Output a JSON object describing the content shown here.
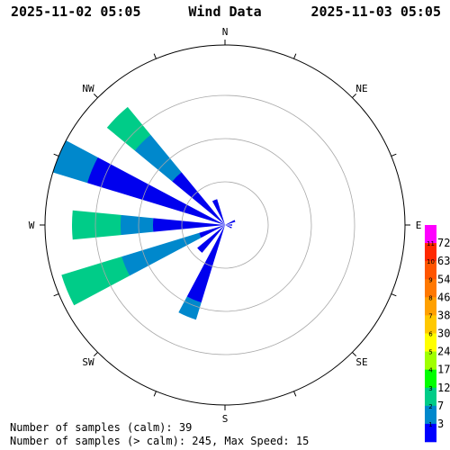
{
  "header": {
    "start": "2025-11-02 05:05",
    "title": "Wind Data",
    "end": "2025-11-03 05:05"
  },
  "footer": {
    "calm_label": "Number of samples (calm): 39",
    "stats_label": "Number of samples (> calm): 245,  Max Speed: 15"
  },
  "chart_data": {
    "type": "wind-rose",
    "title": "Wind Data",
    "directions": [
      "N",
      "NE",
      "E",
      "SE",
      "S",
      "SW",
      "W",
      "NW"
    ],
    "compass_step_deg": 22.5,
    "rings": 4,
    "sector_width_deg": 11,
    "sectors": [
      {
        "bearing": 67.5,
        "bands": [
          0.06
        ]
      },
      {
        "bearing": 90,
        "bands": [
          0.04
        ]
      },
      {
        "bearing": 112.5,
        "bands": [
          0.04
        ]
      },
      {
        "bearing": 202.5,
        "bands": [
          0.45,
          0.55
        ]
      },
      {
        "bearing": 225,
        "bands": [
          0.2
        ]
      },
      {
        "bearing": 247.5,
        "bands": [
          0.15,
          0.6,
          0.95
        ]
      },
      {
        "bearing": 270,
        "bands": [
          0.4,
          0.58,
          0.85
        ]
      },
      {
        "bearing": 292.5,
        "bands": [
          0.8,
          1.4,
          2.0
        ]
      },
      {
        "bearing": 315,
        "bands": [
          0.38,
          0.65,
          0.85
        ]
      },
      {
        "bearing": 337.5,
        "bands": [
          0.15
        ]
      }
    ],
    "colorbar": {
      "labels": [
        "72",
        "63",
        "54",
        "46",
        "38",
        "30",
        "24",
        "17",
        "12",
        "7",
        "3"
      ],
      "small_labels": [
        "11",
        "10",
        "9",
        "8",
        "7",
        "6",
        "5",
        "4",
        "3",
        "2",
        "1"
      ],
      "colors": [
        "#ff00ff",
        "#ff2800",
        "#ff5500",
        "#ff7800",
        "#ffa000",
        "#ffc800",
        "#ffff00",
        "#a0ff00",
        "#00ff00",
        "#00cc88",
        "#0088cc",
        "#0000ff"
      ],
      "band_colors": [
        "#0000ee",
        "#0088cc",
        "#00cc88"
      ]
    }
  }
}
